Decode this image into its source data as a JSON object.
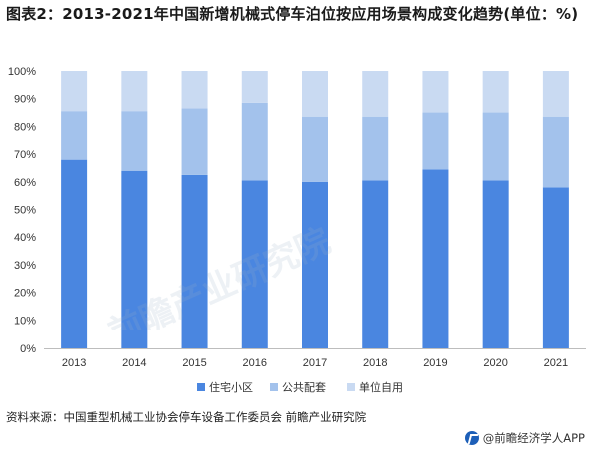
{
  "title": "图表2：2013-2021年中国新增机械式停车泊位按应用场景构成变化趋势(单位：%)",
  "source": "资料来源：中国重型机械工业协会停车设备工作委员会 前瞻产业研究院",
  "credit": "@前瞻经济学人APP",
  "watermark": "前瞻产业研究院",
  "colors": {
    "residential": "#4a86e0",
    "public": "#a3c2ec",
    "unit": "#c9daf2"
  },
  "chart_data": {
    "type": "bar",
    "stacked": true,
    "categories": [
      "2013",
      "2014",
      "2015",
      "2016",
      "2017",
      "2018",
      "2019",
      "2020",
      "2021"
    ],
    "series": [
      {
        "name": "住宅小区",
        "values": [
          68,
          64,
          62.5,
          60.5,
          60,
          60.5,
          64.5,
          60.5,
          58
        ]
      },
      {
        "name": "公共配套",
        "values": [
          17.5,
          21.5,
          24,
          28,
          23.5,
          23,
          20.5,
          24.5,
          25.5
        ]
      },
      {
        "name": "单位自用",
        "values": [
          14.5,
          14.5,
          13.5,
          11.5,
          16.5,
          16.5,
          15,
          15,
          16.5
        ]
      }
    ],
    "yticks": [
      "0%",
      "10%",
      "20%",
      "30%",
      "40%",
      "50%",
      "60%",
      "70%",
      "80%",
      "90%",
      "100%"
    ],
    "ylim": [
      0,
      100
    ],
    "grid": false,
    "legend": "bottom"
  }
}
